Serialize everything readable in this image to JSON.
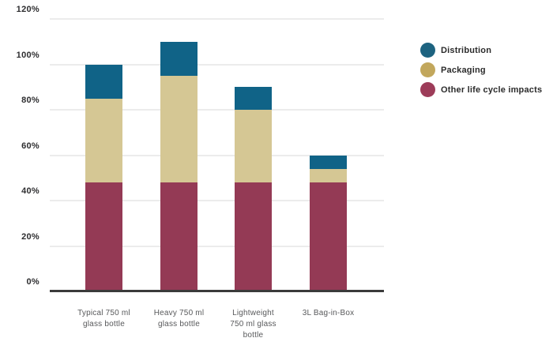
{
  "chart_data": {
    "type": "bar",
    "stacked": true,
    "title": "",
    "xlabel": "",
    "ylabel": "",
    "ylim": [
      0,
      120
    ],
    "ytick_step": 20,
    "ytick_suffix": "%",
    "grid": true,
    "legend_position": "right",
    "categories": [
      "Typical 750 ml glass bottle",
      "Heavy 750 ml glass bottle",
      "Lightweight 750 ml glass bottle",
      "3L Bag-in-Box"
    ],
    "series": [
      {
        "name": "Other life cycle impacts",
        "values": [
          48,
          48,
          48,
          48
        ],
        "color": "#943a55",
        "legend_color": "#9d3c59"
      },
      {
        "name": "Packaging",
        "values": [
          37,
          47,
          32,
          6
        ],
        "color": "#d5c794",
        "legend_color": "#c2a75c"
      },
      {
        "name": "Distribution",
        "values": [
          15,
          15,
          10,
          6
        ],
        "color": "#106387",
        "legend_color": "#1d6380"
      }
    ],
    "stack_totals": [
      100,
      110,
      90,
      60
    ],
    "ytick_labels": [
      "0%",
      "20%",
      "40%",
      "60%",
      "80%",
      "100%",
      "120%"
    ],
    "colors": {
      "gridline": "#d9d9d9",
      "axis_line": "#3b3b3b",
      "ytick_text": "#2d2d2f",
      "xlabel_text": "#58595b",
      "legend_text": "#2b2b2b",
      "background": "#ffffff"
    }
  }
}
